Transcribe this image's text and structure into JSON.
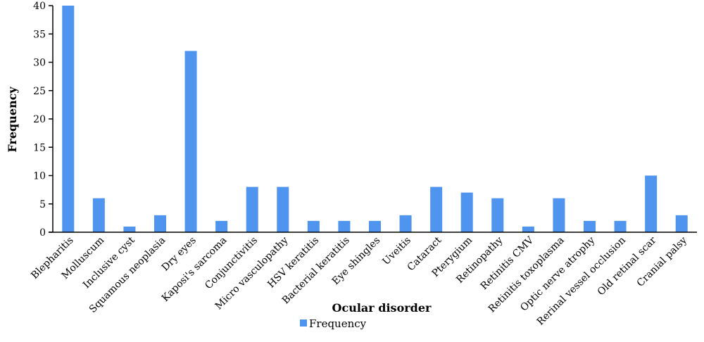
{
  "chart_data": {
    "type": "bar",
    "categories": [
      "Blepharitis",
      "Molluscum",
      "Inclusive cyst",
      "Squamous neoplasia",
      "Dry eyes",
      "Kaposi's sarcoma",
      "Conjunctivitis",
      "Micro vasculopathy",
      "HSV keratitis",
      "Bacterial keratitis",
      "Eye shingles",
      "Uveitis",
      "Cataract",
      "Pterygium",
      "Retinopathy",
      "Retinitis CMV",
      "Retinitis toxoplasma",
      "Optic nerve atrophy",
      "Rerinal vessel occlusion",
      "Old retinal scar",
      "Cranial palsy"
    ],
    "series": [
      {
        "name": "Frequency",
        "color": "#4f94ef",
        "values": [
          40,
          6,
          1,
          3,
          32,
          2,
          8,
          8,
          2,
          2,
          2,
          3,
          8,
          7,
          6,
          1,
          6,
          2,
          2,
          10,
          3
        ]
      }
    ],
    "xlabel": "Ocular disorder",
    "ylabel": "Frequency",
    "ylim": [
      0,
      40
    ],
    "yticks": [
      0,
      5,
      10,
      15,
      20,
      25,
      30,
      35,
      40
    ],
    "grid": false,
    "legend_position": "bottom"
  }
}
